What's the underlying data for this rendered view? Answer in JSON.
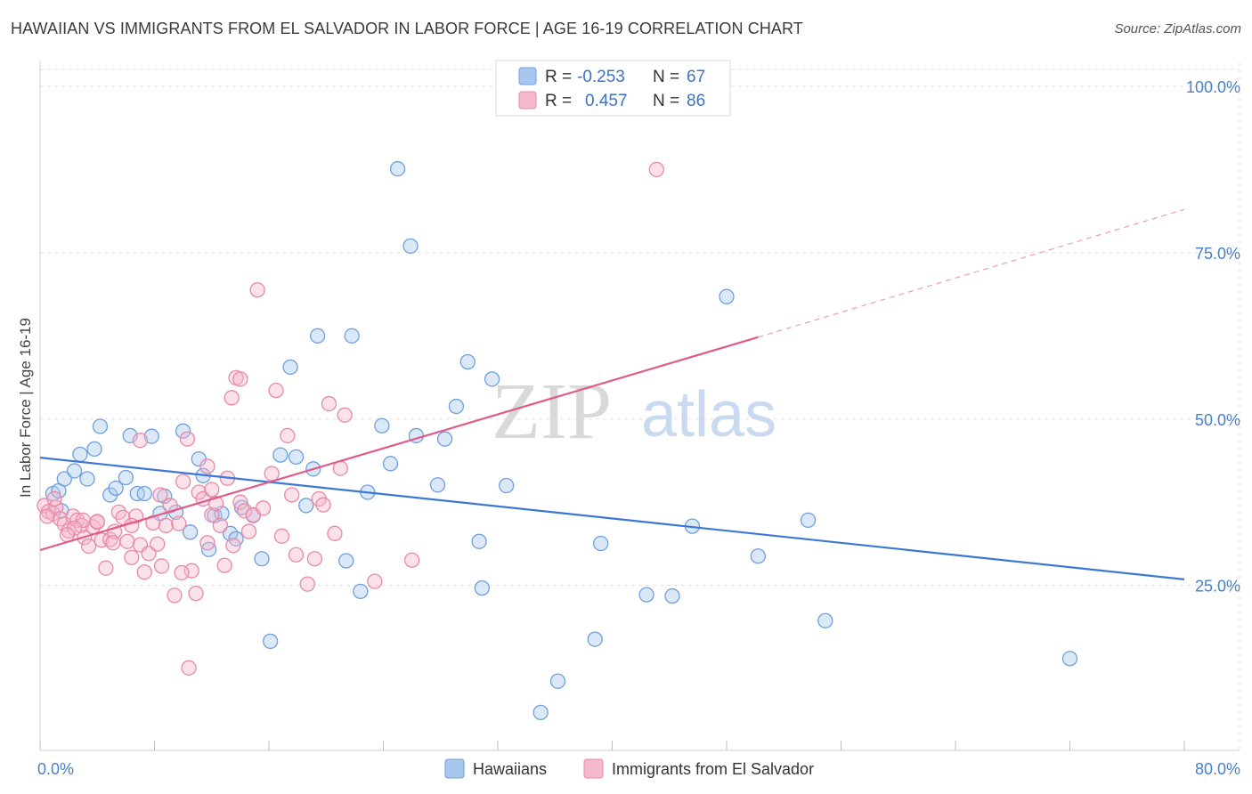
{
  "header": {
    "title": "HAWAIIAN VS IMMIGRANTS FROM EL SALVADOR IN LABOR FORCE | AGE 16-19 CORRELATION CHART",
    "source": "Source: ZipAtlas.com"
  },
  "watermark": {
    "zip": "ZIP",
    "atlas": "atlas"
  },
  "legend": {
    "rows": [
      {
        "r_label": "R =",
        "r_value": "-0.253",
        "n_label": "N =",
        "n_value": "67",
        "color": "#a9c7ee",
        "stroke": "#6f9fdd"
      },
      {
        "r_label": "R =",
        "r_value": "0.457",
        "n_label": "N =",
        "n_value": "86",
        "color": "#f5b8cc",
        "stroke": "#e889a8"
      }
    ]
  },
  "bottom_legend": [
    {
      "label": "Hawaiians",
      "color": "#a9c7ee",
      "stroke": "#6f9fdd"
    },
    {
      "label": "Immigrants from El Salvador",
      "color": "#f5b8cc",
      "stroke": "#e889a8"
    }
  ],
  "chart_data": {
    "type": "scatter",
    "ylabel": "In Labor Force | Age 16-19",
    "xlim": [
      0,
      80
    ],
    "ylim": [
      0,
      103
    ],
    "x_tick_labels": [
      "0.0%",
      "80.0%"
    ],
    "y_ticks": [
      25,
      50,
      75,
      100
    ],
    "y_tick_labels": [
      "25.0%",
      "50.0%",
      "75.0%",
      "100.0%"
    ],
    "grid": true,
    "series": [
      {
        "name": "Hawaiians",
        "color": "#6f9fdd",
        "fill": "#a9c7ee",
        "trend": {
          "x": [
            0,
            80
          ],
          "y": [
            44.2,
            25.9
          ],
          "color": "#3a78d4"
        },
        "points": [
          [
            0.9,
            38.8
          ],
          [
            1.3,
            39.2
          ],
          [
            1.7,
            41.0
          ],
          [
            2.4,
            42.2
          ],
          [
            2.8,
            44.7
          ],
          [
            3.3,
            41.0
          ],
          [
            3.8,
            45.5
          ],
          [
            4.2,
            48.9
          ],
          [
            4.9,
            38.6
          ],
          [
            5.3,
            39.6
          ],
          [
            6.0,
            41.2
          ],
          [
            6.3,
            47.5
          ],
          [
            6.8,
            38.8
          ],
          [
            7.3,
            38.8
          ],
          [
            7.8,
            47.4
          ],
          [
            8.4,
            35.8
          ],
          [
            8.7,
            38.4
          ],
          [
            9.5,
            36.0
          ],
          [
            10.0,
            48.2
          ],
          [
            10.5,
            33.0
          ],
          [
            11.1,
            44.0
          ],
          [
            11.4,
            41.5
          ],
          [
            11.8,
            30.4
          ],
          [
            12.2,
            35.5
          ],
          [
            12.7,
            35.8
          ],
          [
            13.3,
            32.8
          ],
          [
            13.7,
            32.0
          ],
          [
            14.1,
            36.7
          ],
          [
            14.9,
            35.5
          ],
          [
            15.5,
            29.0
          ],
          [
            16.1,
            16.6
          ],
          [
            16.8,
            44.6
          ],
          [
            17.5,
            57.8
          ],
          [
            17.9,
            44.3
          ],
          [
            18.6,
            37.0
          ],
          [
            19.1,
            42.5
          ],
          [
            19.4,
            62.5
          ],
          [
            21.4,
            28.7
          ],
          [
            21.8,
            62.5
          ],
          [
            22.4,
            24.1
          ],
          [
            22.9,
            39.0
          ],
          [
            23.9,
            49.0
          ],
          [
            24.5,
            43.3
          ],
          [
            25.0,
            87.6
          ],
          [
            25.9,
            76.0
          ],
          [
            26.3,
            47.5
          ],
          [
            27.8,
            40.1
          ],
          [
            28.3,
            47.0
          ],
          [
            29.1,
            51.9
          ],
          [
            29.9,
            58.6
          ],
          [
            30.7,
            31.6
          ],
          [
            30.9,
            24.6
          ],
          [
            31.6,
            56.0
          ],
          [
            32.6,
            40.0
          ],
          [
            35.0,
            5.9
          ],
          [
            36.2,
            10.6
          ],
          [
            38.8,
            16.9
          ],
          [
            39.2,
            31.3
          ],
          [
            42.4,
            23.6
          ],
          [
            44.2,
            23.4
          ],
          [
            45.6,
            33.9
          ],
          [
            48.0,
            68.4
          ],
          [
            50.2,
            29.4
          ],
          [
            53.7,
            34.8
          ],
          [
            54.9,
            19.7
          ],
          [
            72.0,
            14.0
          ],
          [
            1.5,
            36.2
          ]
        ]
      },
      {
        "name": "Immigrants from El Salvador",
        "color": "#e889a8",
        "fill": "#f5b8cc",
        "trend": {
          "x": [
            0,
            50.2
          ],
          "y": [
            30.3,
            62.3
          ],
          "color": "#e05a8a",
          "dash_x": [
            50.2,
            80
          ],
          "dash_y": [
            62.3,
            81.5
          ]
        },
        "points": [
          [
            0.3,
            37.0
          ],
          [
            0.6,
            36.1
          ],
          [
            0.9,
            35.8
          ],
          [
            1.1,
            36.7
          ],
          [
            1.4,
            35.0
          ],
          [
            1.7,
            34.2
          ],
          [
            2.0,
            33.2
          ],
          [
            2.3,
            35.4
          ],
          [
            2.6,
            34.8
          ],
          [
            2.9,
            34.0
          ],
          [
            3.1,
            32.2
          ],
          [
            3.4,
            30.9
          ],
          [
            3.7,
            33.8
          ],
          [
            4.0,
            34.5
          ],
          [
            4.3,
            31.8
          ],
          [
            4.6,
            27.6
          ],
          [
            4.9,
            31.9
          ],
          [
            5.2,
            33.1
          ],
          [
            5.5,
            36.0
          ],
          [
            5.8,
            35.2
          ],
          [
            6.1,
            31.6
          ],
          [
            6.4,
            29.2
          ],
          [
            6.7,
            35.4
          ],
          [
            7.0,
            31.1
          ],
          [
            7.3,
            27.0
          ],
          [
            7.6,
            29.8
          ],
          [
            7.9,
            34.4
          ],
          [
            8.2,
            31.2
          ],
          [
            8.5,
            27.9
          ],
          [
            8.8,
            34.0
          ],
          [
            9.1,
            37.0
          ],
          [
            9.4,
            23.5
          ],
          [
            9.7,
            34.3
          ],
          [
            10.0,
            40.6
          ],
          [
            10.3,
            47.0
          ],
          [
            10.6,
            27.2
          ],
          [
            10.9,
            23.8
          ],
          [
            11.1,
            39.0
          ],
          [
            11.4,
            38.0
          ],
          [
            11.7,
            42.9
          ],
          [
            12.0,
            35.6
          ],
          [
            12.3,
            37.3
          ],
          [
            12.6,
            34.0
          ],
          [
            12.9,
            28.0
          ],
          [
            13.1,
            41.1
          ],
          [
            13.4,
            53.2
          ],
          [
            13.7,
            56.2
          ],
          [
            14.0,
            37.5
          ],
          [
            14.3,
            36.2
          ],
          [
            14.6,
            33.1
          ],
          [
            14.9,
            35.6
          ],
          [
            15.2,
            69.4
          ],
          [
            16.2,
            41.8
          ],
          [
            16.5,
            54.3
          ],
          [
            17.3,
            47.5
          ],
          [
            17.6,
            38.6
          ],
          [
            17.9,
            29.6
          ],
          [
            18.7,
            25.2
          ],
          [
            19.2,
            29.0
          ],
          [
            19.5,
            38.0
          ],
          [
            19.8,
            37.1
          ],
          [
            20.2,
            52.3
          ],
          [
            20.6,
            32.8
          ],
          [
            21.0,
            42.6
          ],
          [
            21.3,
            50.6
          ],
          [
            23.4,
            25.6
          ],
          [
            26.0,
            28.8
          ],
          [
            10.4,
            12.6
          ],
          [
            43.1,
            87.5
          ],
          [
            14.0,
            56.0
          ],
          [
            12.0,
            39.4
          ],
          [
            8.4,
            38.6
          ],
          [
            7.0,
            46.8
          ],
          [
            5.1,
            31.4
          ],
          [
            6.4,
            34.0
          ],
          [
            9.9,
            26.9
          ],
          [
            11.7,
            31.4
          ],
          [
            13.5,
            31.0
          ],
          [
            4.0,
            34.6
          ],
          [
            3.0,
            34.8
          ],
          [
            2.4,
            33.6
          ],
          [
            1.9,
            32.6
          ],
          [
            0.5,
            35.4
          ],
          [
            1.0,
            38.0
          ],
          [
            15.6,
            36.6
          ],
          [
            16.9,
            32.4
          ]
        ]
      }
    ]
  }
}
